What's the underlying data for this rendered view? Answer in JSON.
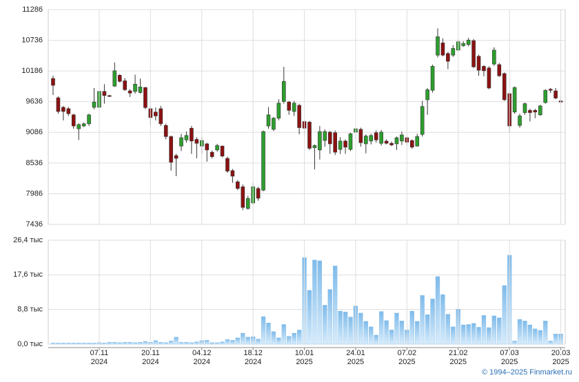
{
  "chart_data": [
    {
      "type": "candlestick",
      "open": [
        10052,
        9706,
        9535,
        9510,
        9400,
        9150,
        9200,
        9240,
        9535,
        9535,
        9820,
        9745,
        9915,
        10110,
        10010,
        9830,
        9820,
        9800,
        9890,
        9510,
        9450,
        9510,
        9210,
        9010,
        8670,
        8840,
        8950,
        9160,
        8960,
        8840,
        8880,
        8730,
        8770,
        8840,
        8620,
        8400,
        8200,
        8110,
        7720,
        7820,
        8080,
        8050,
        9200,
        9140,
        9340,
        9640,
        9630,
        9460,
        9570,
        9280,
        9270,
        8810,
        8770,
        8940,
        9090,
        9080,
        8780,
        8930,
        8780,
        9090,
        9140,
        8880,
        8930,
        9080,
        8890,
        8930,
        8890,
        8880,
        8930,
        8990,
        8940,
        8840,
        9050,
        9670,
        9840,
        10470,
        10690,
        10500,
        10470,
        10560,
        10640,
        10660,
        10730,
        10450,
        10270,
        10240,
        10310,
        10300,
        10140,
        9780,
        9450,
        9210,
        9440,
        9480,
        9480,
        9400,
        9620,
        9860,
        9830,
        9650
      ],
      "high": [
        10101,
        9730,
        9560,
        9540,
        9420,
        9250,
        9260,
        9420,
        9880,
        9850,
        9950,
        9760,
        10340,
        10130,
        10060,
        9860,
        10120,
        10050,
        9900,
        9560,
        9530,
        9560,
        9240,
        9030,
        8700,
        9060,
        9100,
        9200,
        9000,
        9000,
        8900,
        8760,
        8880,
        8850,
        8650,
        8430,
        8230,
        8150,
        7950,
        8180,
        8110,
        9120,
        9540,
        9360,
        9680,
        10260,
        9650,
        9650,
        9600,
        9300,
        9290,
        8870,
        9200,
        9140,
        9110,
        9120,
        9000,
        8960,
        9080,
        9170,
        9170,
        9050,
        9060,
        9120,
        9130,
        8960,
        8920,
        9010,
        9100,
        9010,
        8960,
        9060,
        9650,
        9880,
        10300,
        10950,
        10770,
        10530,
        10650,
        10740,
        10720,
        10780,
        10760,
        10480,
        10290,
        10270,
        10610,
        10330,
        10160,
        9800,
        9910,
        9420,
        9620,
        9510,
        9510,
        9580,
        9860,
        9880,
        9880,
        9730
      ],
      "low": [
        9756,
        9420,
        9300,
        9380,
        9150,
        8950,
        9180,
        9200,
        9500,
        9510,
        9600,
        9720,
        9900,
        9980,
        9830,
        9720,
        9780,
        9780,
        9500,
        9200,
        9300,
        9200,
        8960,
        8400,
        8300,
        8750,
        8900,
        8700,
        8620,
        8700,
        8560,
        8620,
        8740,
        8640,
        8360,
        8180,
        8050,
        7690,
        7700,
        7780,
        7860,
        8030,
        9150,
        9110,
        9300,
        9600,
        9400,
        9380,
        9050,
        9000,
        8770,
        8420,
        8600,
        8830,
        8700,
        8680,
        8700,
        8700,
        8750,
        8950,
        8830,
        8710,
        8870,
        8900,
        8850,
        8870,
        8840,
        8770,
        8860,
        8850,
        8790,
        8830,
        9010,
        9400,
        9800,
        10430,
        10450,
        10220,
        10440,
        10540,
        10620,
        10630,
        10240,
        10100,
        10090,
        9860,
        10280,
        10080,
        9650,
        9080,
        9420,
        9170,
        9400,
        9280,
        9340,
        9380,
        9600,
        9790,
        9680,
        9600
      ],
      "close": [
        9929,
        9460,
        9460,
        9420,
        9200,
        9225,
        9240,
        9400,
        9630,
        9820,
        9745,
        9730,
        10190,
        10000,
        9850,
        9790,
        9950,
        9900,
        9530,
        9350,
        9380,
        9240,
        9010,
        8550,
        8620,
        8990,
        9030,
        8930,
        8890,
        8940,
        8770,
        8650,
        8850,
        8660,
        8390,
        8300,
        8080,
        7740,
        7900,
        8110,
        7905,
        9100,
        9400,
        9340,
        9610,
        10000,
        9480,
        9610,
        9170,
        9160,
        8800,
        8850,
        9100,
        9100,
        8880,
        8730,
        8930,
        8820,
        9060,
        9150,
        8900,
        9020,
        9030,
        8950,
        9090,
        8890,
        8860,
        8990,
        9040,
        8910,
        8820,
        9010,
        9550,
        9850,
        10270,
        10800,
        10470,
        10360,
        10590,
        10710,
        10680,
        10740,
        10260,
        10200,
        10190,
        9880,
        10560,
        10100,
        9670,
        9200,
        9890,
        9380,
        9600,
        9440,
        9450,
        9560,
        9840,
        9840,
        9700,
        9630
      ],
      "up_color": "#2e9e2e",
      "down_color": "#8c1212",
      "ylim": [
        7436,
        11286
      ],
      "yticks": [
        7436,
        7986,
        8536,
        9086,
        9636,
        10186,
        10736,
        11286
      ],
      "grid": true
    },
    {
      "type": "bar",
      "categories": [
        null,
        null,
        null,
        null,
        null,
        null,
        null,
        null,
        null,
        [
          "07.11",
          "2024"
        ],
        null,
        null,
        null,
        null,
        null,
        null,
        null,
        null,
        null,
        [
          "20.11",
          "2024"
        ],
        null,
        null,
        null,
        null,
        null,
        null,
        null,
        null,
        null,
        [
          "04.12",
          "2024"
        ],
        null,
        null,
        null,
        null,
        null,
        null,
        null,
        null,
        null,
        [
          "18.12",
          "2024"
        ],
        null,
        null,
        null,
        null,
        null,
        null,
        null,
        null,
        null,
        [
          "10.01",
          "2025"
        ],
        null,
        null,
        null,
        null,
        null,
        null,
        null,
        null,
        null,
        [
          "24.01",
          "2025"
        ],
        null,
        null,
        null,
        null,
        null,
        null,
        null,
        null,
        null,
        [
          "07.02",
          "2025"
        ],
        null,
        null,
        null,
        null,
        null,
        null,
        null,
        null,
        null,
        [
          "21.02",
          "2025"
        ],
        null,
        null,
        null,
        null,
        null,
        null,
        null,
        null,
        null,
        [
          "07.03",
          "2025"
        ],
        null,
        null,
        null,
        null,
        null,
        null,
        null,
        null,
        null,
        [
          "20.03",
          "2025"
        ]
      ],
      "values": [
        0.3,
        0.3,
        0.3,
        0.3,
        0.3,
        0.3,
        0.3,
        0.3,
        0.3,
        0.4,
        0.3,
        0.5,
        0.5,
        0.4,
        0.5,
        0.5,
        0.4,
        0.5,
        0.7,
        0.5,
        0.9,
        0.5,
        0.4,
        0.8,
        1.8,
        0.5,
        0.5,
        0.4,
        0.6,
        0.9,
        1.0,
        0.4,
        0.4,
        0.6,
        1.2,
        1.0,
        1.6,
        2.8,
        1.8,
        1.9,
        1.3,
        7.0,
        5.4,
        3.2,
        1.6,
        5.0,
        2.0,
        2.8,
        3.6,
        22.0,
        13.7,
        21.4,
        21.2,
        9.9,
        13.9,
        19.9,
        8.4,
        8.2,
        6.9,
        9.7,
        7.9,
        5.8,
        4.4,
        2.3,
        8.3,
        6.0,
        3.6,
        7.9,
        5.9,
        3.6,
        8.4,
        5.8,
        12.4,
        7.5,
        11.5,
        17.2,
        12.6,
        7.6,
        4.4,
        8.9,
        4.9,
        5.0,
        5.3,
        4.3,
        7.3,
        4.2,
        7.2,
        6.7,
        14.9,
        22.6,
        0.8,
        6.3,
        5.9,
        4.9,
        3.9,
        3.5,
        5.9,
        0.8,
        2.6,
        2.6
      ],
      "color": "#7fbbea",
      "ylim": [
        0,
        26.4
      ],
      "yticks": [
        {
          "value": 0,
          "label": "0,0 тыс"
        },
        {
          "value": 8.8,
          "label": "8,8 тыс"
        },
        {
          "value": 17.6,
          "label": "17,6 тыс"
        },
        {
          "value": 26.4,
          "label": "26,4 тыс"
        }
      ],
      "grid": true
    }
  ],
  "footer": "© 1994–2025 Finmarket.ru"
}
